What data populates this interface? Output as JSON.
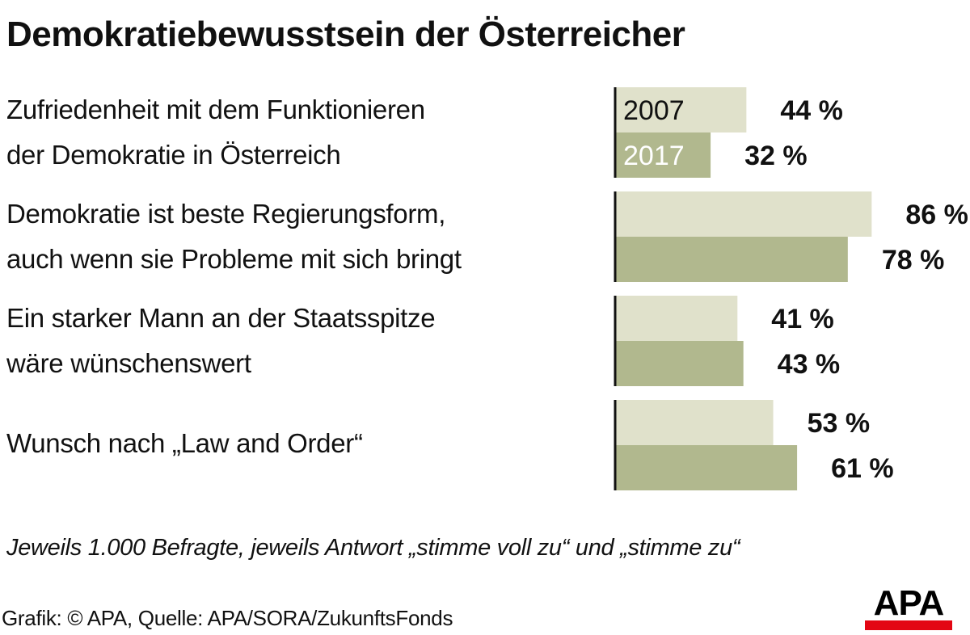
{
  "title": "Demokratiebewusstsein der Österreicher",
  "colors": {
    "y2007": "#e0e1cb",
    "y2017": "#b1b88e",
    "axis": "#111111",
    "logo_red": "#e30613"
  },
  "chart_data": {
    "type": "bar",
    "orientation": "horizontal",
    "title": "Demokratiebewusstsein der Österreicher",
    "categories": [
      "Zufriedenheit mit dem Funktionieren der Demokratie in Österreich",
      "Demokratie ist beste Regierungsform, auch wenn sie Probleme mit sich bringt",
      "Ein starker Mann an der Staatsspitze wäre wünschenswert",
      "Wunsch nach „Law and Order“"
    ],
    "category_lines": [
      [
        "Zufriedenheit mit dem Funktionieren",
        "der Demokratie in Österreich"
      ],
      [
        "Demokratie ist beste Regierungsform,",
        "auch wenn sie Probleme mit sich bringt"
      ],
      [
        "Ein starker Mann an der Staatsspitze",
        "wäre wünschenswert"
      ],
      [
        "Wunsch nach „Law and Order“"
      ]
    ],
    "series": [
      {
        "name": "2007",
        "values": [
          44,
          86,
          41,
          53
        ],
        "labels": [
          "44 %",
          "86 %",
          "41 %",
          "53 %"
        ]
      },
      {
        "name": "2017",
        "values": [
          32,
          78,
          43,
          61
        ],
        "labels": [
          "32 %",
          "78 %",
          "43 %",
          "61 %"
        ]
      }
    ],
    "unit": "%",
    "xlim": [
      0,
      100
    ],
    "grid": false,
    "legend": "inside-first-group-bars"
  },
  "note": "Jeweils 1.000 Befragte, jeweils Antwort „stimme voll zu“ und „stimme zu“",
  "source": "Grafik: © APA, Quelle: APA/SORA/ZukunftsFonds",
  "logo": "APA"
}
